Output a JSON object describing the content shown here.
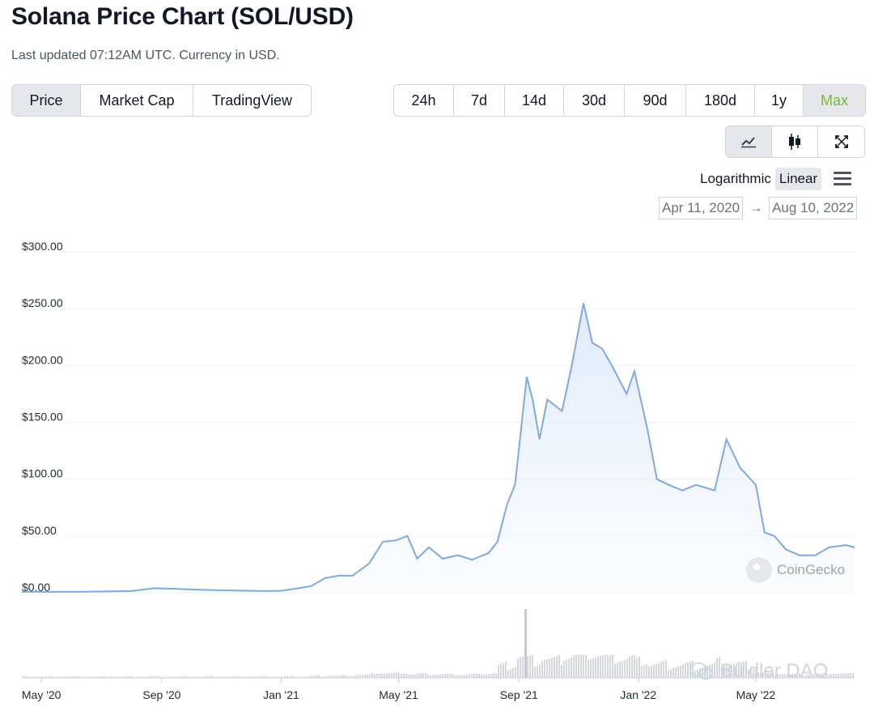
{
  "header": {
    "title": "Solana Price Chart (SOL/USD)",
    "subtitle": "Last updated 07:12AM UTC. Currency in USD."
  },
  "tabs": [
    {
      "label": "Price",
      "active": true
    },
    {
      "label": "Market Cap",
      "active": false
    },
    {
      "label": "TradingView",
      "active": false
    }
  ],
  "ranges": [
    {
      "label": "24h",
      "active": false
    },
    {
      "label": "7d",
      "active": false
    },
    {
      "label": "14d",
      "active": false
    },
    {
      "label": "30d",
      "active": false
    },
    {
      "label": "90d",
      "active": false
    },
    {
      "label": "180d",
      "active": false
    },
    {
      "label": "1y",
      "active": false
    },
    {
      "label": "Max",
      "active": true
    }
  ],
  "tools": [
    {
      "icon": "line-chart-icon",
      "active": true
    },
    {
      "icon": "candlestick-icon",
      "active": false
    },
    {
      "icon": "fullscreen-icon",
      "active": false
    }
  ],
  "scale": {
    "logarithmic": "Logarithmic",
    "linear": "Linear",
    "active": "Linear"
  },
  "date_range": {
    "from": "Apr 11, 2020",
    "arrow": "→",
    "to": "Aug 10, 2022"
  },
  "watermark": "CoinGecko",
  "overlay_watermark": "Buidler DAO",
  "colors": {
    "line": "#7fa9e0",
    "area_top": "#dbe7f7",
    "volume": "#c7cbd1",
    "accent_green": "#7cb342"
  },
  "chart_data": {
    "type": "line",
    "title": "Solana Price Chart (SOL/USD)",
    "xlabel": "",
    "ylabel": "",
    "ylim": [
      0,
      300
    ],
    "y_ticks": [
      "$300.00",
      "$250.00",
      "$200.00",
      "$150.00",
      "$100.00",
      "$50.00",
      "$0.00"
    ],
    "x_ticks": [
      "May '20",
      "Sep '20",
      "Jan '21",
      "May '21",
      "Sep '21",
      "Jan '22",
      "May '22"
    ],
    "x": [
      "2020-04-11",
      "2020-05-01",
      "2020-06-15",
      "2020-08-01",
      "2020-08-25",
      "2020-09-15",
      "2020-10-15",
      "2020-11-15",
      "2020-12-15",
      "2021-01-01",
      "2021-01-15",
      "2021-02-01",
      "2021-02-15",
      "2021-03-01",
      "2021-03-15",
      "2021-04-01",
      "2021-04-15",
      "2021-04-28",
      "2021-05-10",
      "2021-05-20",
      "2021-06-01",
      "2021-06-15",
      "2021-07-01",
      "2021-07-15",
      "2021-08-01",
      "2021-08-10",
      "2021-08-20",
      "2021-08-28",
      "2021-09-09",
      "2021-09-15",
      "2021-09-22",
      "2021-09-30",
      "2021-10-15",
      "2021-10-25",
      "2021-11-06",
      "2021-11-15",
      "2021-11-25",
      "2021-12-05",
      "2021-12-20",
      "2021-12-28",
      "2022-01-10",
      "2022-01-20",
      "2022-02-01",
      "2022-02-15",
      "2022-03-01",
      "2022-03-20",
      "2022-04-01",
      "2022-04-15",
      "2022-05-01",
      "2022-05-10",
      "2022-05-20",
      "2022-06-01",
      "2022-06-15",
      "2022-07-01",
      "2022-07-15",
      "2022-08-01",
      "2022-08-10"
    ],
    "series": [
      {
        "values": [
          0.9,
          0.8,
          0.9,
          1.5,
          4.0,
          3.5,
          2.5,
          2.0,
          1.5,
          1.8,
          3.5,
          6.0,
          13.0,
          15.0,
          15.0,
          26.0,
          45.0,
          46.0,
          50.0,
          30.0,
          40.0,
          30.0,
          33.0,
          29.0,
          35.0,
          45.0,
          78.0,
          95.0,
          190.0,
          170.0,
          135.0,
          170.0,
          160.0,
          200.0,
          255.0,
          220.0,
          215.0,
          200.0,
          175.0,
          195.0,
          145.0,
          100.0,
          95.0,
          90.0,
          95.0,
          90.0,
          135.0,
          110.0,
          95.0,
          53.0,
          50.0,
          38.0,
          33.0,
          33.0,
          40.0,
          42.0,
          40.0
        ]
      }
    ],
    "grid": true
  }
}
